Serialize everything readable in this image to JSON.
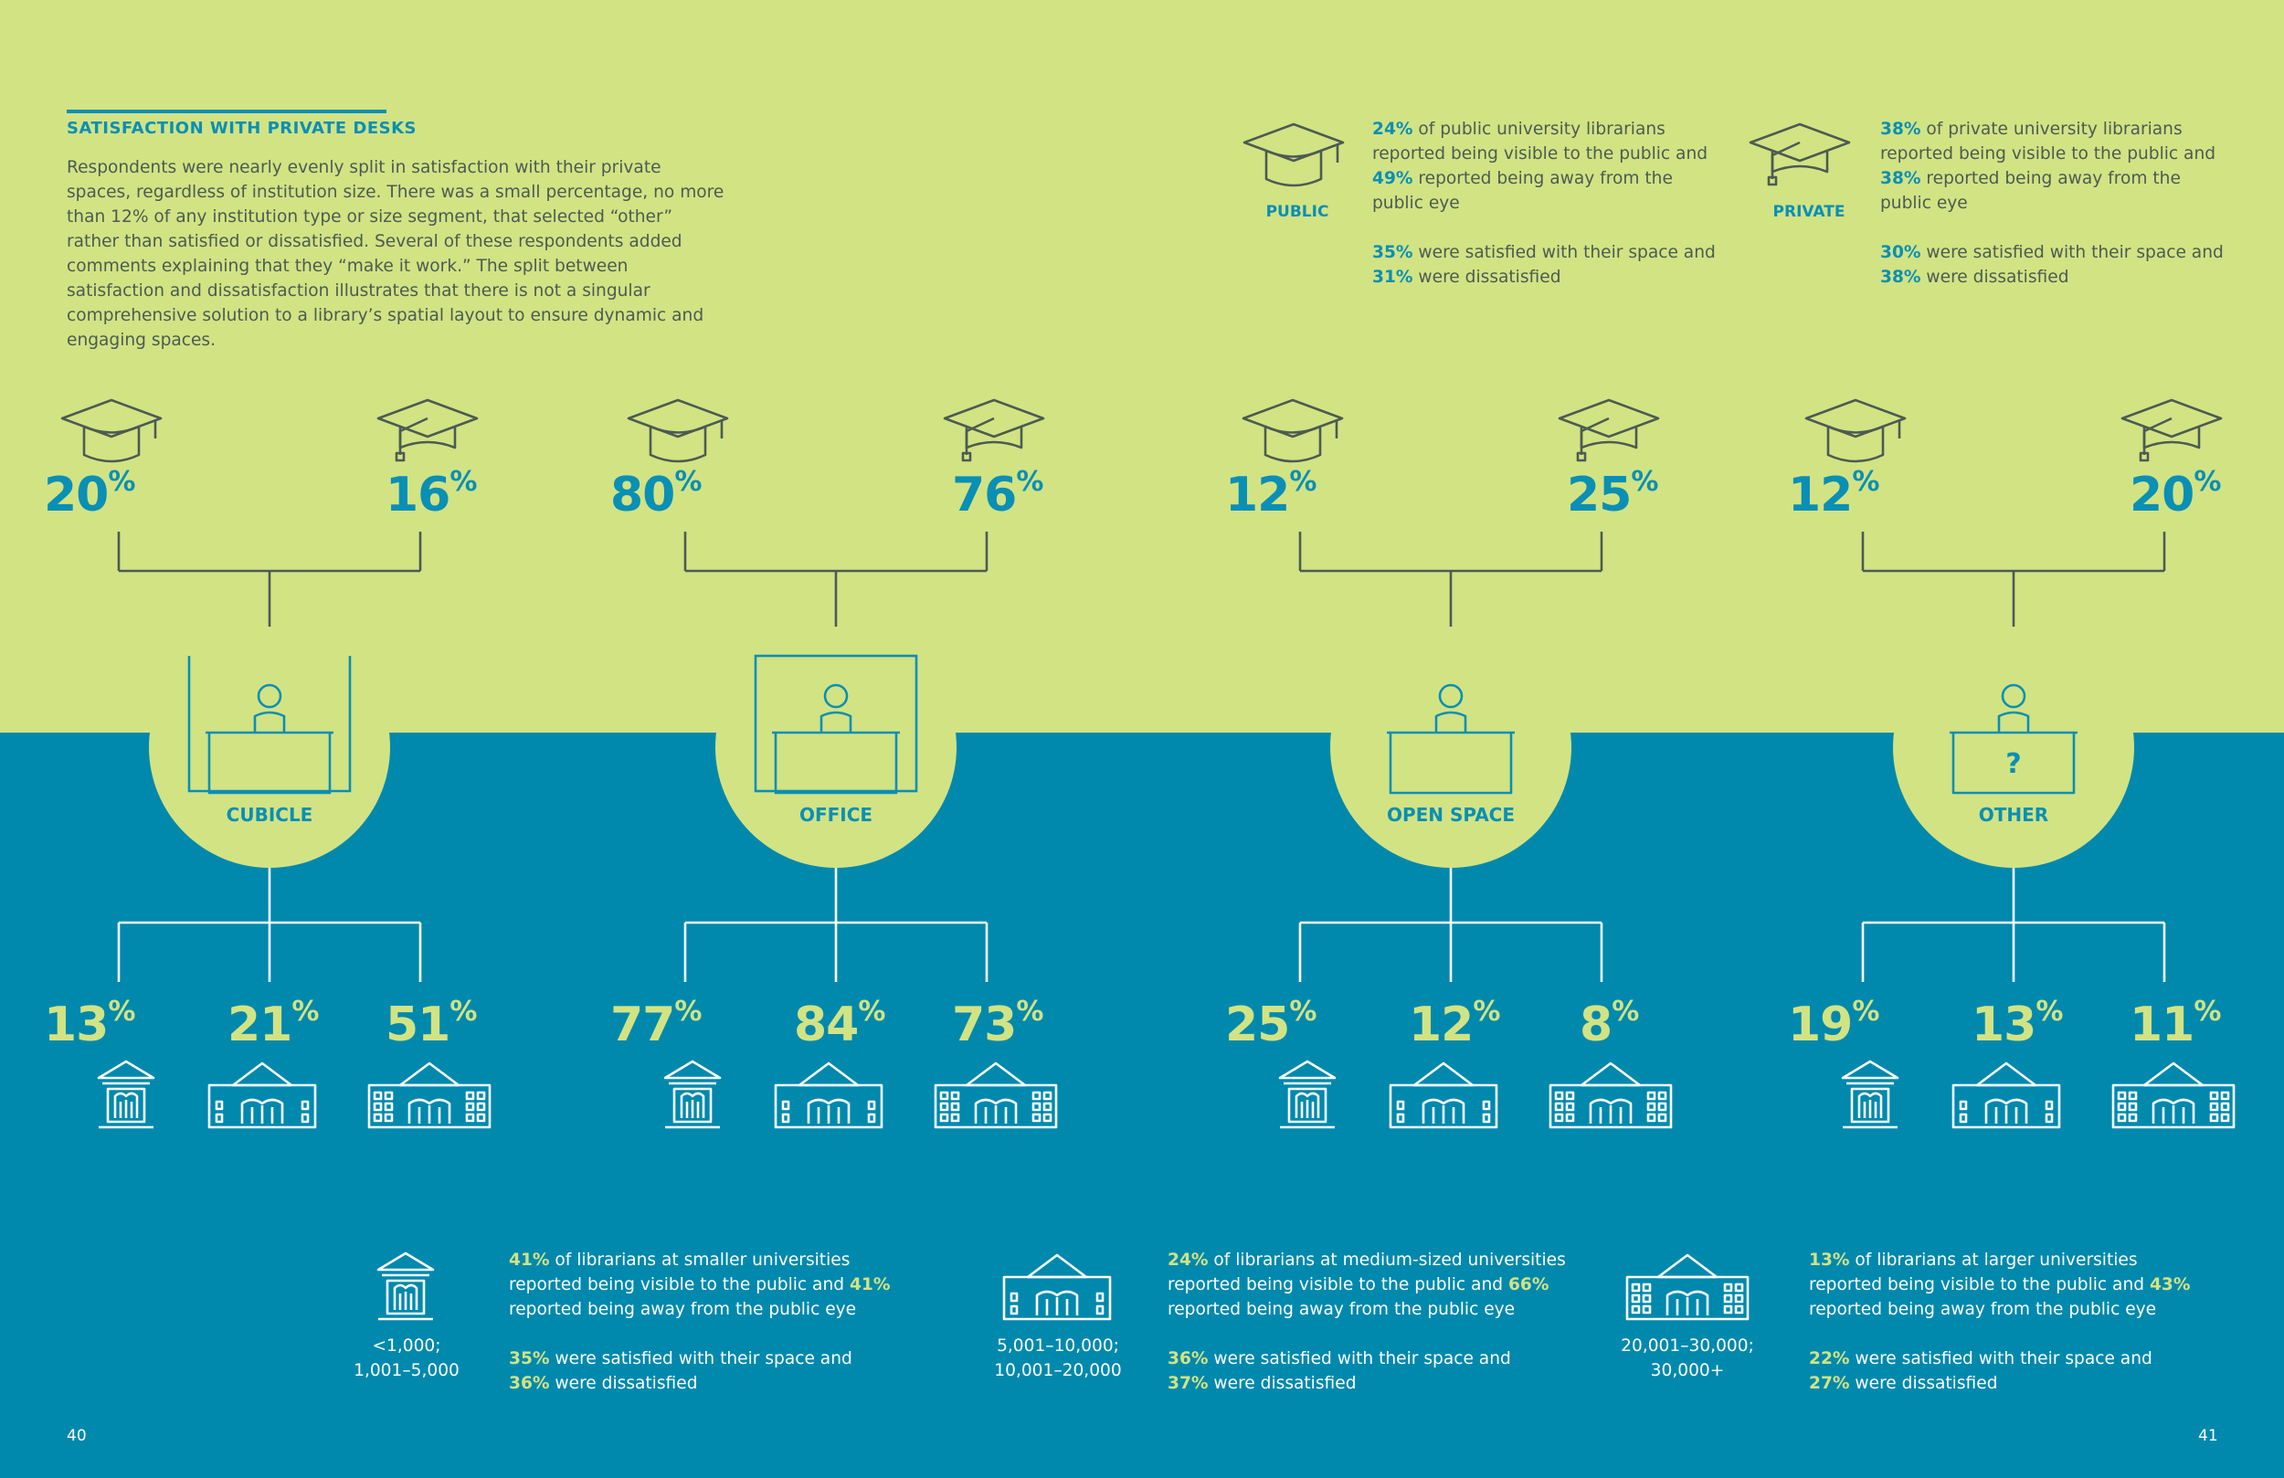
{
  "intro": {
    "title": "SATISFACTION WITH PRIVATE DESKS",
    "body": "Respondents were nearly evenly split in satisfaction with their private spaces, regardless of institution size. There was a small percentage, no more than 12% of any institution type or size segment, that selected “other” rather than satisfied or dissatisfied. Several of these respondents added comments explaining that they “make it work.” The split between satisfaction and dissatisfaction illustrates that there is not a singular comprehensive solution to a library’s spatial layout to ensure dynamic and engaging spaces."
  },
  "public": {
    "label": "PUBLIC",
    "icon": "mortarboard-icon",
    "line1_pct": "24%",
    "line1_text": " of public university librarians reported being visible to the public and ",
    "line2_pct": "49%",
    "line2_text": " reported being away from the public eye",
    "line3_pct": "35%",
    "line3_text": " were satisfied with their space and ",
    "line4_pct": "31%",
    "line4_text": " were dissatisfied"
  },
  "private": {
    "label": "PRIVATE",
    "icon": "graduation-cap-icon",
    "line1_pct": "38%",
    "line1_text": " of private university librarians reported being visible to the public and ",
    "line2_pct": "38%",
    "line2_text": " reported being away from the public eye",
    "line3_pct": "30%",
    "line3_text": " were satisfied with their space and ",
    "line4_pct": "38%",
    "line4_text": " were dissatisfied"
  },
  "categories": [
    {
      "label": "CUBICLE",
      "public": "20",
      "private": "16",
      "small": "13",
      "medium": "21",
      "large": "51"
    },
    {
      "label": "OFFICE",
      "public": "80",
      "private": "76",
      "small": "77",
      "medium": "84",
      "large": "73"
    },
    {
      "label": "OPEN SPACE",
      "public": "12",
      "private": "25",
      "small": "25",
      "medium": "12",
      "large": "8"
    },
    {
      "label": "OTHER",
      "public": "12",
      "private": "20",
      "small": "19",
      "medium": "13",
      "large": "11",
      "mark": "?"
    }
  ],
  "percent_sign": "%",
  "sizes": [
    {
      "range": "<1,000;\n1,001–5,000",
      "range_lines": [
        "<1,000;",
        "1,001–5,000"
      ],
      "line1_pct": "41%",
      "line1_text": " of librarians at smaller universities reported being visible to the public and ",
      "line2_pct": "41%",
      "line2_text": " reported being away from the public eye",
      "line3_pct": "35%",
      "line3_text": " were satisfied with their space and ",
      "line4_pct": "36%",
      "line4_text": " were dissatisfied"
    },
    {
      "range": "5,001–10,000;\n10,001–20,000",
      "range_lines": [
        "5,001–10,000;",
        "10,001–20,000"
      ],
      "line1_pct": "24%",
      "line1_text": " of librarians at medium-sized universities reported being visible to the public and ",
      "line2_pct": "66%",
      "line2_text": " reported being away from the public eye",
      "line3_pct": "36%",
      "line3_text": " were satisfied with their space and ",
      "line4_pct": "37%",
      "line4_text": " were dissatisfied"
    },
    {
      "range": "20,001–30,000;\n30,000+",
      "range_lines": [
        "20,001–30,000;",
        "30,000+"
      ],
      "line1_pct": "13%",
      "line1_text": " of librarians at larger universities reported being visible to the public and ",
      "line2_pct": "43%",
      "line2_text": " reported being away from the public eye",
      "line3_pct": "22%",
      "line3_text": " were satisfied with their space and ",
      "line4_pct": "27%",
      "line4_text": " were dissatisfied"
    }
  ],
  "pages": {
    "left": "40",
    "right": "41"
  },
  "colors": {
    "green": "#d2e384",
    "blue": "#0089ad",
    "accent": "#0a8fb5",
    "text": "#4c5b52"
  }
}
